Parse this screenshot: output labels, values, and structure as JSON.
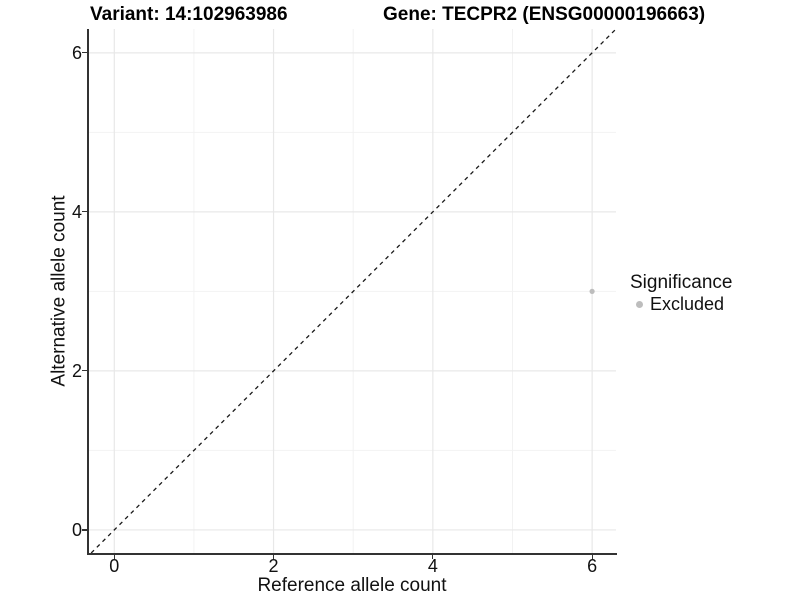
{
  "chart_data": {
    "type": "scatter",
    "title_left": "Variant: 14:102963986",
    "title_right": "Gene: TECPR2 (ENSG00000196663)",
    "xlabel": "Reference allele count",
    "ylabel": "Alternative allele count",
    "xlim": [
      -0.33,
      6.3
    ],
    "ylim": [
      -0.29,
      6.3
    ],
    "x_ticks": [
      0,
      2,
      4,
      6
    ],
    "y_ticks": [
      0,
      2,
      4,
      6
    ],
    "grid": {
      "major": true,
      "minor": true
    },
    "reference_line": {
      "kind": "identity y=x",
      "style": "dashed",
      "color": "#1a1a1a"
    },
    "series": [
      {
        "name": "Excluded",
        "color": "#bdbdbd",
        "points": [
          [
            6,
            3
          ]
        ]
      }
    ],
    "legend": {
      "title": "Significance",
      "position": "right",
      "items": [
        {
          "label": "Excluded",
          "color": "#bdbdbd"
        }
      ]
    }
  },
  "colors": {
    "background": "#ffffff",
    "grid_major": "#e8e8e8",
    "grid_minor": "#f2f2f2",
    "axis_line": "#333333",
    "tick_mark": "#333333",
    "point": "#bdbdbd",
    "text": "#111111"
  }
}
